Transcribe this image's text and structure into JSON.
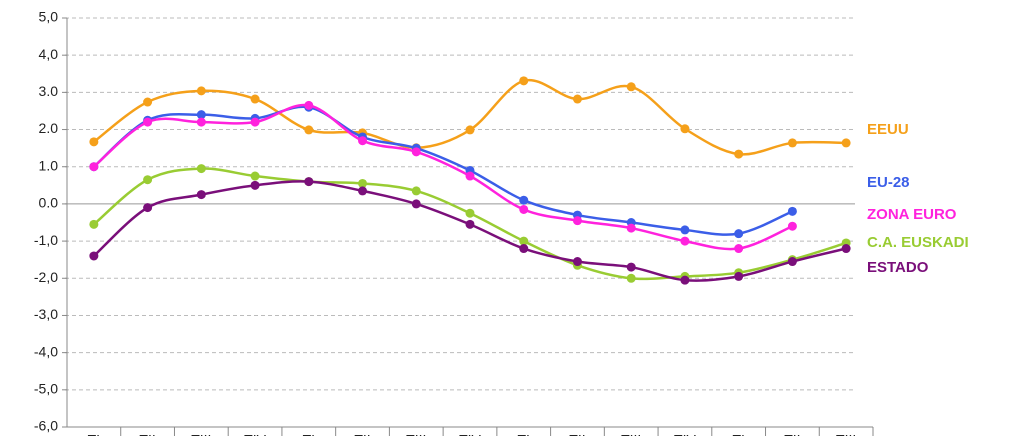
{
  "chart_data": {
    "type": "line",
    "categories": [
      "TI",
      "TII",
      "TIII",
      "TIV",
      "TI",
      "TII",
      "TIII",
      "TIV",
      "TI",
      "TII",
      "TIII",
      "TIV",
      "TI",
      "TII",
      "TIII"
    ],
    "series": [
      {
        "name": "EEUU",
        "color": "#f5a01a",
        "values": [
          1.67,
          2.74,
          3.04,
          2.82,
          1.99,
          1.91,
          1.51,
          1.99,
          3.31,
          2.82,
          3.15,
          2.02,
          1.34,
          1.64,
          1.64
        ]
      },
      {
        "name": "EU-28",
        "color": "#3b5ee8",
        "values": [
          1.0,
          2.25,
          2.4,
          2.3,
          2.6,
          1.8,
          1.5,
          0.9,
          0.1,
          -0.3,
          -0.5,
          -0.7,
          -0.8,
          -0.2,
          null
        ]
      },
      {
        "name": "ZONA EURO",
        "color": "#ff22dd",
        "values": [
          1.0,
          2.2,
          2.2,
          2.2,
          2.65,
          1.7,
          1.4,
          0.75,
          -0.15,
          -0.45,
          -0.65,
          -1.0,
          -1.2,
          -0.6,
          null
        ]
      },
      {
        "name": "C.A. EUSKADI",
        "color": "#99cc33",
        "values": [
          -0.55,
          0.65,
          0.95,
          0.75,
          0.6,
          0.55,
          0.35,
          -0.25,
          -1.0,
          -1.65,
          -2.0,
          -1.95,
          -1.85,
          -1.5,
          -1.05
        ]
      },
      {
        "name": "ESTADO",
        "color": "#7a0f7a",
        "values": [
          -1.4,
          -0.1,
          0.25,
          0.5,
          0.6,
          0.35,
          0.0,
          -0.55,
          -1.2,
          -1.55,
          -1.7,
          -2.05,
          -1.95,
          -1.55,
          -1.2
        ]
      }
    ],
    "ylim": [
      -6,
      5
    ],
    "yticks": [
      {
        "value": 5,
        "label": "5,0"
      },
      {
        "value": 4,
        "label": "4,0"
      },
      {
        "value": 3,
        "label": "3.0"
      },
      {
        "value": 2,
        "label": "2.0"
      },
      {
        "value": 1,
        "label": "1.0"
      },
      {
        "value": 0,
        "label": "0.0"
      },
      {
        "value": -1,
        "label": "-1,0"
      },
      {
        "value": -2,
        "label": "-2,0"
      },
      {
        "value": -3,
        "label": "-3,0"
      },
      {
        "value": -4,
        "label": "-4,0"
      },
      {
        "value": -5,
        "label": "-5,0"
      },
      {
        "value": -6,
        "label": "-6,0"
      }
    ],
    "grid": true
  }
}
